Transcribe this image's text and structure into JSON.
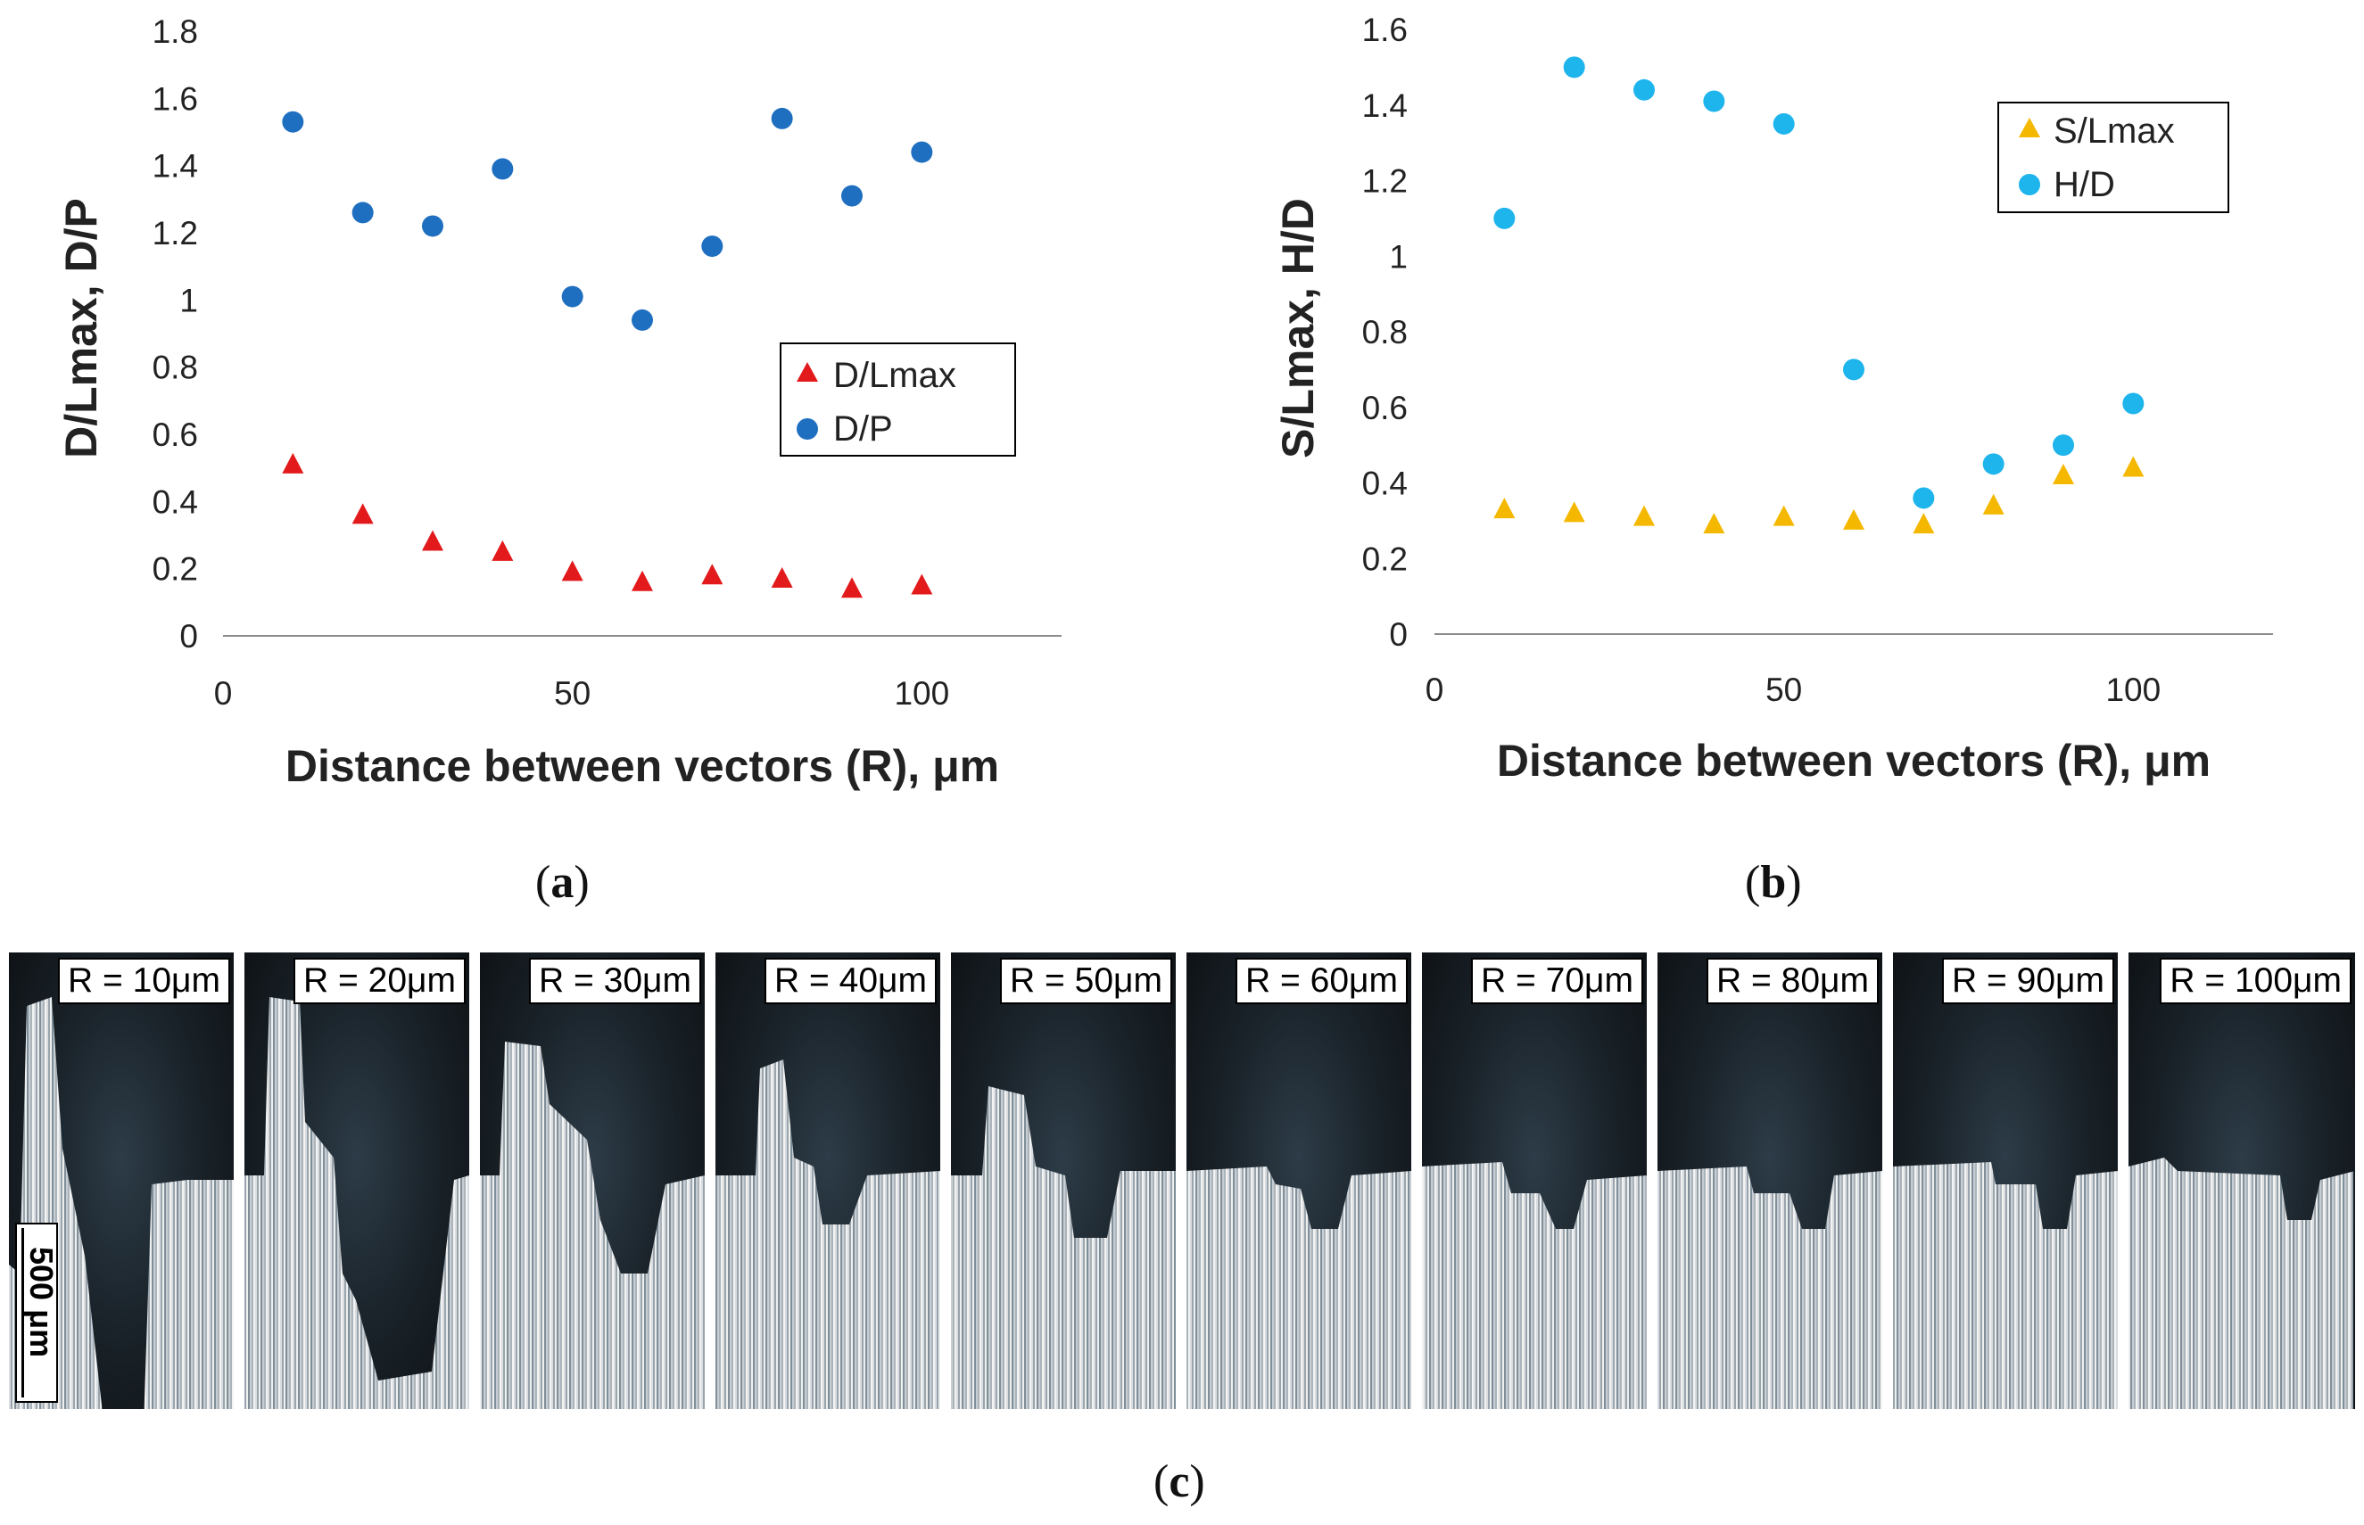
{
  "chart_data": [
    {
      "id": "a",
      "type": "scatter",
      "xlabel": "Distance between vectors (R), μm",
      "ylabel": "D/Lmax, D/P",
      "xlim": [
        0,
        120
      ],
      "ylim": [
        0,
        1.8
      ],
      "x_ticks": [
        "0",
        "50",
        "100"
      ],
      "x_tick_values": [
        0,
        50,
        100
      ],
      "y_ticks": [
        "0",
        "0.2",
        "0.4",
        "0.6",
        "0.8",
        "1",
        "1.2",
        "1.4",
        "1.6",
        "1.8"
      ],
      "y_tick_values": [
        0,
        0.2,
        0.4,
        0.6,
        0.8,
        1.0,
        1.2,
        1.4,
        1.6,
        1.8
      ],
      "legend_position": "center-right",
      "series": [
        {
          "name": "D/Lmax",
          "marker": "triangle",
          "color": "#e31a1c",
          "x": [
            10,
            20,
            30,
            40,
            50,
            60,
            70,
            80,
            90,
            100
          ],
          "y": [
            0.51,
            0.36,
            0.28,
            0.25,
            0.19,
            0.16,
            0.18,
            0.17,
            0.14,
            0.15
          ]
        },
        {
          "name": "D/P",
          "marker": "circle",
          "color": "#1f6fc0",
          "x": [
            10,
            20,
            30,
            40,
            50,
            60,
            70,
            80,
            90,
            100
          ],
          "y": [
            1.53,
            1.26,
            1.22,
            1.39,
            1.01,
            0.94,
            1.16,
            1.54,
            1.31,
            1.44
          ]
        }
      ]
    },
    {
      "id": "b",
      "type": "scatter",
      "xlabel": "Distance between vectors (R), μm",
      "ylabel": "S/Lmax, H/D",
      "xlim": [
        0,
        120
      ],
      "ylim": [
        0,
        1.6
      ],
      "x_ticks": [
        "0",
        "50",
        "100"
      ],
      "x_tick_values": [
        0,
        50,
        100
      ],
      "y_ticks": [
        "0",
        "0.2",
        "0.4",
        "0.6",
        "0.8",
        "1",
        "1.2",
        "1.4",
        "1.6"
      ],
      "y_tick_values": [
        0,
        0.2,
        0.4,
        0.6,
        0.8,
        1.0,
        1.2,
        1.4,
        1.6
      ],
      "legend_position": "top-right",
      "series": [
        {
          "name": "S/Lmax",
          "marker": "triangle",
          "color": "#f5b800",
          "x": [
            10,
            20,
            30,
            40,
            50,
            60,
            70,
            80,
            90,
            100
          ],
          "y": [
            0.33,
            0.32,
            0.31,
            0.29,
            0.31,
            0.3,
            0.29,
            0.34,
            0.42,
            0.44
          ]
        },
        {
          "name": "H/D",
          "marker": "circle",
          "color": "#1eb4ec",
          "x": [
            10,
            20,
            30,
            40,
            50,
            60,
            70,
            80,
            90,
            100
          ],
          "y": [
            1.1,
            1.5,
            1.44,
            1.41,
            1.35,
            0.7,
            0.36,
            0.45,
            0.5,
            0.61
          ]
        }
      ]
    }
  ],
  "panel_labels": {
    "a": "a",
    "b": "b",
    "c": "c"
  },
  "micrographs": {
    "frames": [
      "R = 10μm",
      "R = 20μm",
      "R = 30μm",
      "R = 40μm",
      "R = 50μm",
      "R = 60μm",
      "R = 70μm",
      "R = 80μm",
      "R = 90μm",
      "R = 100μm"
    ],
    "scale_bar": "500 μm"
  }
}
